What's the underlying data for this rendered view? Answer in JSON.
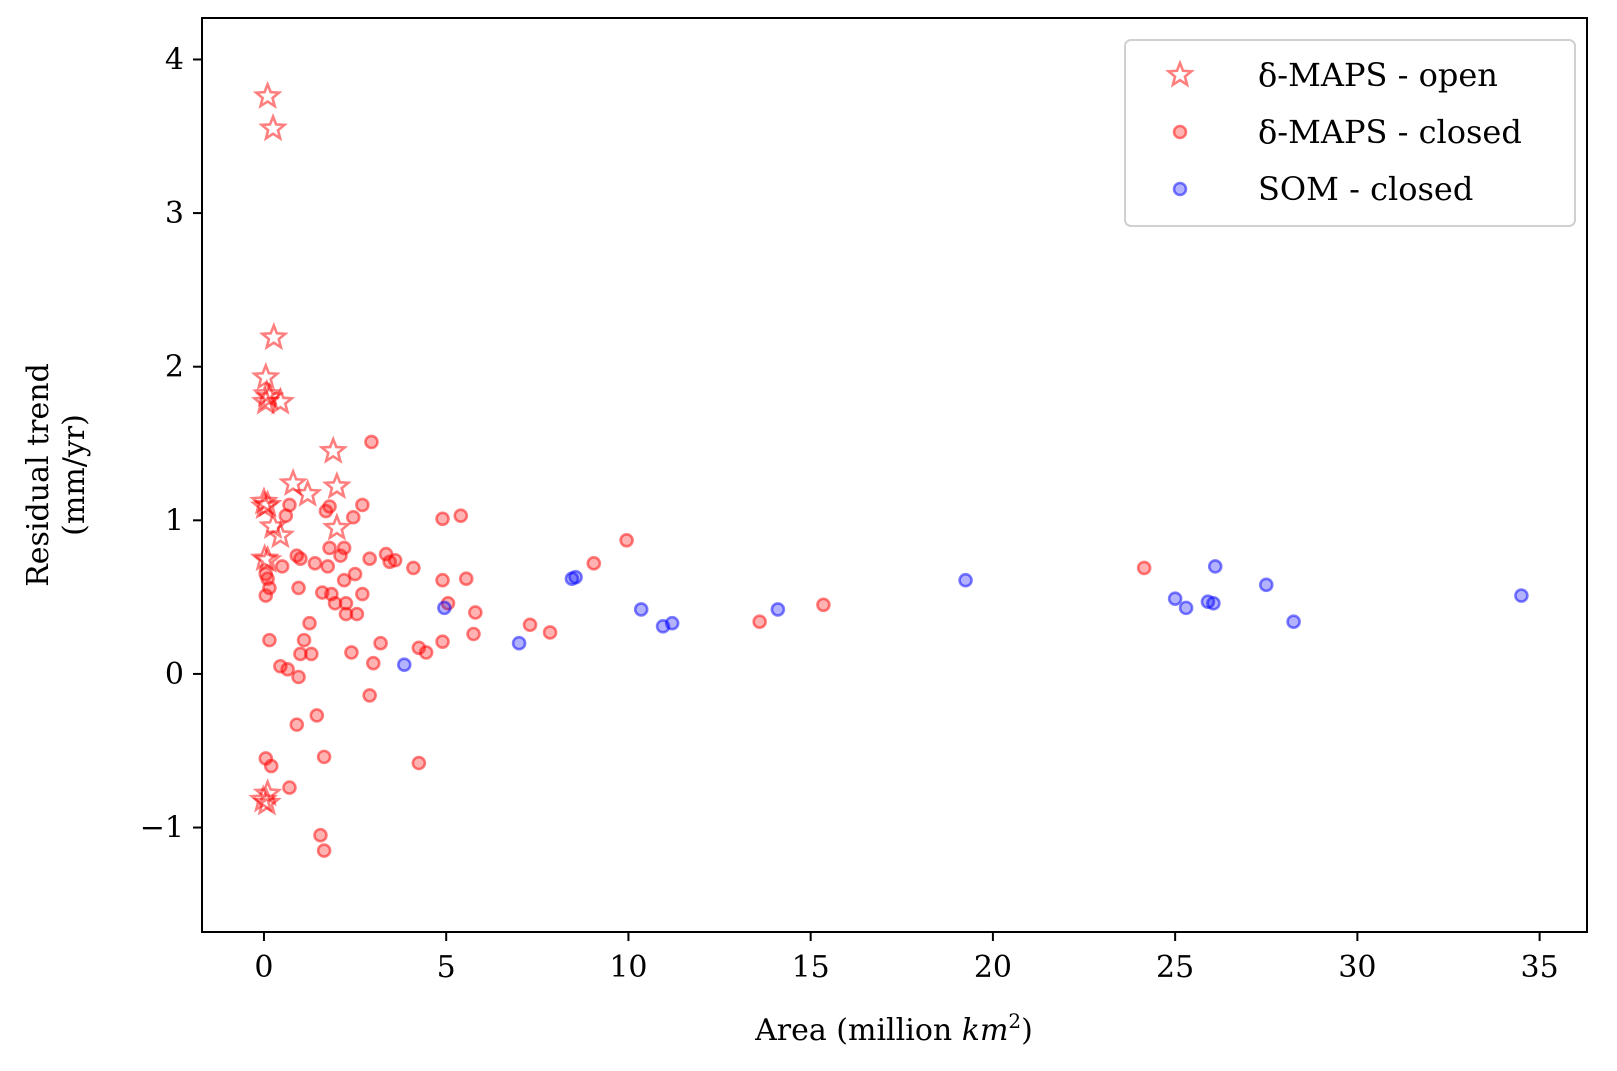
{
  "chart_data": {
    "type": "scatter",
    "title": "",
    "xlabel_prefix": "Area (million ",
    "xlabel_var": "km",
    "xlabel_sup": "2",
    "xlabel_suffix": ")",
    "ylabel_lines": [
      "Residual trend",
      "(mm/yr)"
    ],
    "xlim": [
      -1.7,
      36.3
    ],
    "ylim": [
      -1.68,
      4.27
    ],
    "xticks": [
      0,
      5,
      10,
      15,
      20,
      25,
      30,
      35
    ],
    "xtick_labels": [
      "0",
      "5",
      "10",
      "15",
      "20",
      "25",
      "30",
      "35"
    ],
    "yticks": [
      -1,
      0,
      1,
      2,
      3,
      4
    ],
    "ytick_labels": [
      "−1",
      "0",
      "1",
      "2",
      "3",
      "4"
    ],
    "grid": false,
    "legend_position": "top-right",
    "series": [
      {
        "name": "δ-MAPS - open",
        "marker": "star",
        "color": "#ff0000",
        "points": [
          [
            0.1,
            3.76
          ],
          [
            0.25,
            3.55
          ],
          [
            0.27,
            2.19
          ],
          [
            0.05,
            1.93
          ],
          [
            0.08,
            1.82
          ],
          [
            0.15,
            1.8
          ],
          [
            0.05,
            1.77
          ],
          [
            0.45,
            1.77
          ],
          [
            1.9,
            1.45
          ],
          [
            0.8,
            1.24
          ],
          [
            2.0,
            1.22
          ],
          [
            1.2,
            1.17
          ],
          [
            0.0,
            1.12
          ],
          [
            0.1,
            1.1
          ],
          [
            0.02,
            1.09
          ],
          [
            0.25,
            0.96
          ],
          [
            0.45,
            0.9
          ],
          [
            2.0,
            0.95
          ],
          [
            0.02,
            0.75
          ],
          [
            0.1,
            0.74
          ],
          [
            0.1,
            -0.78
          ],
          [
            -0.02,
            -0.82
          ],
          [
            0.08,
            -0.84
          ]
        ]
      },
      {
        "name": "δ-MAPS - closed",
        "marker": "circle",
        "color": "#ff0000",
        "points": [
          [
            2.95,
            1.51
          ],
          [
            0.7,
            1.1
          ],
          [
            1.7,
            1.06
          ],
          [
            1.8,
            1.09
          ],
          [
            2.7,
            1.1
          ],
          [
            0.6,
            1.03
          ],
          [
            2.45,
            1.02
          ],
          [
            4.9,
            1.01
          ],
          [
            5.4,
            1.03
          ],
          [
            9.95,
            0.87
          ],
          [
            1.8,
            0.82
          ],
          [
            2.2,
            0.82
          ],
          [
            0.9,
            0.77
          ],
          [
            1.0,
            0.75
          ],
          [
            2.1,
            0.77
          ],
          [
            3.35,
            0.78
          ],
          [
            3.45,
            0.73
          ],
          [
            3.6,
            0.74
          ],
          [
            2.9,
            0.75
          ],
          [
            1.4,
            0.72
          ],
          [
            1.75,
            0.7
          ],
          [
            0.5,
            0.7
          ],
          [
            4.1,
            0.69
          ],
          [
            9.05,
            0.72
          ],
          [
            24.15,
            0.69
          ],
          [
            0.05,
            0.65
          ],
          [
            0.1,
            0.62
          ],
          [
            2.5,
            0.65
          ],
          [
            2.2,
            0.61
          ],
          [
            4.9,
            0.61
          ],
          [
            5.55,
            0.62
          ],
          [
            0.15,
            0.56
          ],
          [
            0.95,
            0.56
          ],
          [
            0.05,
            0.51
          ],
          [
            1.6,
            0.53
          ],
          [
            1.85,
            0.52
          ],
          [
            2.7,
            0.52
          ],
          [
            2.25,
            0.46
          ],
          [
            1.95,
            0.46
          ],
          [
            5.05,
            0.46
          ],
          [
            2.25,
            0.39
          ],
          [
            2.55,
            0.39
          ],
          [
            5.8,
            0.4
          ],
          [
            15.35,
            0.45
          ],
          [
            1.25,
            0.33
          ],
          [
            7.3,
            0.32
          ],
          [
            13.6,
            0.34
          ],
          [
            5.75,
            0.26
          ],
          [
            7.85,
            0.27
          ],
          [
            0.15,
            0.22
          ],
          [
            1.1,
            0.22
          ],
          [
            3.2,
            0.2
          ],
          [
            4.9,
            0.21
          ],
          [
            4.25,
            0.17
          ],
          [
            1.0,
            0.13
          ],
          [
            2.4,
            0.14
          ],
          [
            1.3,
            0.13
          ],
          [
            4.45,
            0.14
          ],
          [
            3.0,
            0.07
          ],
          [
            0.45,
            0.05
          ],
          [
            0.65,
            0.03
          ],
          [
            0.95,
            -0.02
          ],
          [
            2.9,
            -0.14
          ],
          [
            1.45,
            -0.27
          ],
          [
            0.9,
            -0.33
          ],
          [
            0.05,
            -0.55
          ],
          [
            1.65,
            -0.54
          ],
          [
            0.2,
            -0.6
          ],
          [
            4.25,
            -0.58
          ],
          [
            0.7,
            -0.74
          ],
          [
            1.55,
            -1.05
          ],
          [
            1.65,
            -1.15
          ]
        ]
      },
      {
        "name": "SOM - closed",
        "marker": "circle",
        "color": "#0000ff",
        "points": [
          [
            8.45,
            0.62
          ],
          [
            8.55,
            0.63
          ],
          [
            19.25,
            0.61
          ],
          [
            26.1,
            0.7
          ],
          [
            27.5,
            0.58
          ],
          [
            34.5,
            0.51
          ],
          [
            25.0,
            0.49
          ],
          [
            25.3,
            0.43
          ],
          [
            25.9,
            0.47
          ],
          [
            26.05,
            0.46
          ],
          [
            4.95,
            0.43
          ],
          [
            10.35,
            0.42
          ],
          [
            14.1,
            0.42
          ],
          [
            10.95,
            0.31
          ],
          [
            11.2,
            0.33
          ],
          [
            28.25,
            0.34
          ],
          [
            7.0,
            0.2
          ],
          [
            3.85,
            0.06
          ]
        ]
      }
    ]
  }
}
